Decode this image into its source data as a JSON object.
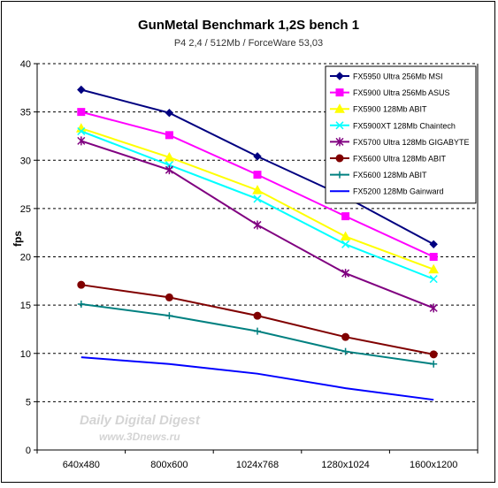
{
  "chart_data": {
    "type": "line",
    "title": "GunMetal Benchmark 1,2S bench 1",
    "subtitle": "P4 2,4 / 512Mb / ForceWare 53,03",
    "xlabel": "",
    "ylabel": "fps",
    "ylim": [
      0,
      40
    ],
    "yticks": [
      "0",
      "5",
      "10",
      "15",
      "20",
      "25",
      "30",
      "35",
      "40"
    ],
    "ytick_values": [
      0,
      5,
      10,
      15,
      20,
      25,
      30,
      35,
      40
    ],
    "categories": [
      "640x480",
      "800x600",
      "1024x768",
      "1280x1024",
      "1600x1200"
    ],
    "grid": "horizontal dashed",
    "legend_position": "right",
    "watermark": [
      "Daily Digital Digest",
      "www.3Dnews.ru"
    ],
    "series": [
      {
        "name": "FX5950 Ultra 256Mb MSI",
        "color": "#000080",
        "marker": "diamond",
        "values": [
          37.3,
          34.9,
          30.4,
          26.2,
          21.3
        ]
      },
      {
        "name": "FX5900 Ultra 256Mb ASUS",
        "color": "#ff00ff",
        "marker": "square",
        "values": [
          35.0,
          32.6,
          28.5,
          24.2,
          20.0
        ]
      },
      {
        "name": "FX5900 128Mb ABIT",
        "color": "#ffff00",
        "marker": "triangle",
        "values": [
          33.3,
          30.3,
          26.9,
          22.1,
          18.7
        ]
      },
      {
        "name": "FX5900XT 128Mb Chaintech",
        "color": "#00ffff",
        "marker": "x",
        "values": [
          33.0,
          29.5,
          26.0,
          21.3,
          17.7
        ]
      },
      {
        "name": "FX5700 Ultra 128Mb GIGABYTE",
        "color": "#800080",
        "marker": "star",
        "values": [
          32.0,
          29.0,
          23.3,
          18.3,
          14.7
        ]
      },
      {
        "name": "FX5600 Ultra 128Mb ABIT",
        "color": "#800000",
        "marker": "circle",
        "values": [
          17.1,
          15.8,
          13.9,
          11.7,
          9.9
        ]
      },
      {
        "name": "FX5600 128Mb ABIT",
        "color": "#008080",
        "marker": "plus",
        "values": [
          15.1,
          13.9,
          12.3,
          10.2,
          8.9
        ]
      },
      {
        "name": "FX5200 128Mb Gainward",
        "color": "#0000ff",
        "marker": "none",
        "values": [
          9.6,
          8.9,
          7.9,
          6.4,
          5.2
        ]
      }
    ]
  }
}
